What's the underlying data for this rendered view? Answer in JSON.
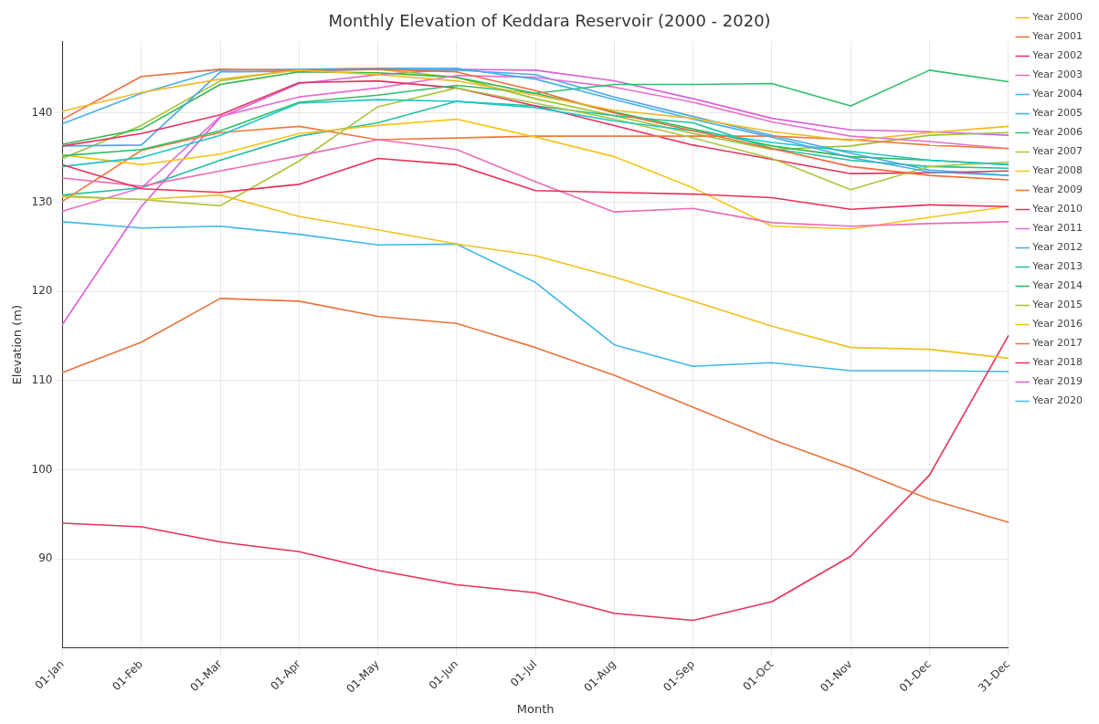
{
  "chart_data": {
    "type": "line",
    "title": "Monthly Elevation of Keddara Reservoir (2000 - 2020)",
    "xlabel": "Month",
    "ylabel": "Elevation (m)",
    "categories": [
      "01-Jan",
      "01-Feb",
      "01-Mar",
      "01-Apr",
      "01-May",
      "01-Jun",
      "01-Jul",
      "01-Aug",
      "01-Sep",
      "01-Oct",
      "01-Nov",
      "01-Dec",
      "31-Dec"
    ],
    "ylim": [
      80,
      148
    ],
    "yticks": [
      90,
      100,
      110,
      120,
      130,
      140
    ],
    "grid": true,
    "legend": "top right",
    "marker": "none",
    "line_style": "solid",
    "series": [
      {
        "name": "Year 2000",
        "color": "#f2b824",
        "values": [
          140.2,
          142.3,
          143.8,
          144.8,
          144.3,
          143.6,
          142.0,
          140.3,
          139.4,
          137.9,
          136.9,
          137.8,
          138.5
        ]
      },
      {
        "name": "Year 2001",
        "color": "#ef6c3a",
        "values": [
          139.3,
          144.1,
          144.9,
          144.8,
          144.9,
          144.6,
          142.5,
          140.0,
          138.0,
          136.0,
          134.0,
          133.0,
          132.5
        ]
      },
      {
        "name": "Year 2002",
        "color": "#e8305a",
        "values": [
          134.2,
          131.5,
          131.1,
          132.0,
          134.9,
          134.2,
          131.3,
          131.1,
          130.9,
          130.5,
          129.2,
          129.7,
          129.5
        ]
      },
      {
        "name": "Year 2003",
        "color": "#ee6bb8",
        "values": [
          132.7,
          131.8,
          133.5,
          135.2,
          137.0,
          135.9,
          132.3,
          128.9,
          129.3,
          127.7,
          127.3,
          127.6,
          127.8
        ]
      },
      {
        "name": "Year 2004",
        "color": "#45b0e6",
        "values": [
          138.8,
          142.2,
          144.8,
          144.9,
          145.0,
          145.0,
          143.8,
          141.5,
          139.3,
          137.3,
          135.0,
          133.4,
          133.0
        ]
      },
      {
        "name": "Year 2005",
        "color": "#1ac8c8",
        "values": [
          134.0,
          135.0,
          137.5,
          141.1,
          141.5,
          141.3,
          140.6,
          139.1,
          138.0,
          136.7,
          135.7,
          134.7,
          134.2
        ]
      },
      {
        "name": "Year 2006",
        "color": "#2ebf6a",
        "values": [
          135.2,
          135.9,
          138.0,
          141.2,
          142.0,
          143.1,
          142.2,
          143.2,
          143.2,
          143.3,
          140.8,
          144.8,
          143.5
        ]
      },
      {
        "name": "Year 2007",
        "color": "#a8c83c",
        "values": [
          130.7,
          130.3,
          129.6,
          134.6,
          140.7,
          142.8,
          141.1,
          139.3,
          137.2,
          134.9,
          131.4,
          134.0,
          134.5
        ]
      },
      {
        "name": "Year 2008",
        "color": "#f5c518",
        "values": [
          135.3,
          134.2,
          135.4,
          137.7,
          138.6,
          139.3,
          137.3,
          135.1,
          131.6,
          127.3,
          127.0,
          128.3,
          129.5
        ]
      },
      {
        "name": "Year 2009",
        "color": "#f07a3c",
        "values": [
          130.1,
          135.8,
          137.8,
          138.5,
          137.0,
          137.2,
          137.4,
          137.4,
          137.4,
          137.4,
          137.0,
          136.4,
          136.0
        ]
      },
      {
        "name": "Year 2010",
        "color": "#e63060",
        "values": [
          136.3,
          137.7,
          139.8,
          143.4,
          143.6,
          142.8,
          140.8,
          138.6,
          136.4,
          134.8,
          133.2,
          133.3,
          133.5
        ]
      },
      {
        "name": "Year 2011",
        "color": "#e86fd0",
        "values": [
          129.0,
          131.6,
          139.6,
          141.8,
          142.8,
          144.2,
          144.0,
          142.9,
          141.2,
          139.0,
          137.4,
          136.8,
          136.0
        ]
      },
      {
        "name": "Year 2012",
        "color": "#4aa8e8",
        "values": [
          136.3,
          136.4,
          144.6,
          144.7,
          144.9,
          144.8,
          144.3,
          141.8,
          139.6,
          137.5,
          135.5,
          133.6,
          133.0
        ]
      },
      {
        "name": "Year 2013",
        "color": "#22c0a0",
        "values": [
          130.8,
          131.6,
          134.7,
          137.4,
          138.9,
          141.3,
          140.8,
          139.7,
          138.9,
          136.0,
          134.7,
          134.0,
          133.8
        ]
      },
      {
        "name": "Year 2014",
        "color": "#2eb84a",
        "values": [
          136.5,
          138.2,
          143.2,
          144.6,
          144.5,
          144.0,
          142.2,
          140.1,
          138.2,
          136.3,
          135.1,
          134.7,
          134.2
        ]
      },
      {
        "name": "Year 2015",
        "color": "#a0c030",
        "values": [
          134.9,
          138.6,
          143.6,
          144.9,
          144.9,
          144.0,
          141.6,
          139.7,
          137.7,
          135.9,
          136.3,
          137.5,
          137.8
        ]
      },
      {
        "name": "Year 2016",
        "color": "#f0c020",
        "values": [
          130.6,
          130.3,
          130.8,
          128.4,
          126.9,
          125.3,
          124.0,
          121.6,
          118.9,
          116.1,
          113.7,
          113.5,
          112.5
        ]
      },
      {
        "name": "Year 2017",
        "color": "#e8743a",
        "values": [
          110.9,
          114.3,
          119.2,
          118.9,
          117.2,
          116.4,
          113.7,
          110.6,
          107.0,
          103.4,
          100.2,
          96.7,
          94.1
        ]
      },
      {
        "name": "Year 2018",
        "color": "#e8305a",
        "values": [
          94.0,
          93.6,
          91.9,
          90.8,
          88.7,
          87.1,
          86.2,
          83.9,
          83.1,
          85.2,
          90.3,
          99.4,
          115.0
        ]
      },
      {
        "name": "Year 2019",
        "color": "#d860d8",
        "values": [
          116.3,
          129.5,
          139.5,
          143.3,
          144.3,
          144.9,
          144.8,
          143.6,
          141.6,
          139.4,
          138.1,
          137.9,
          137.5
        ]
      },
      {
        "name": "Year 2020",
        "color": "#40b8e8",
        "values": [
          127.8,
          127.1,
          127.3,
          126.4,
          125.2,
          125.3,
          121.0,
          114.0,
          111.6,
          112.0,
          111.1,
          111.1,
          111.0
        ]
      }
    ]
  }
}
